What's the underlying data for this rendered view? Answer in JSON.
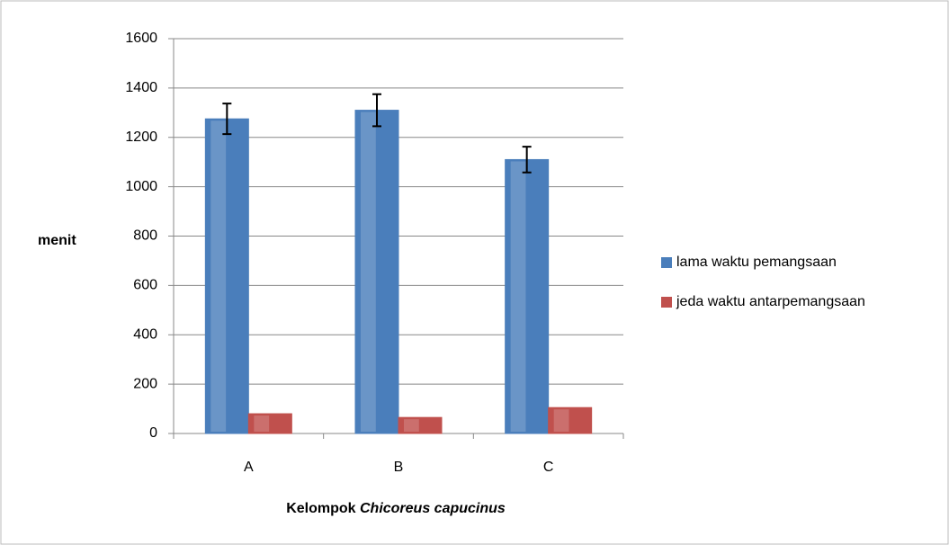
{
  "chart_data": {
    "type": "bar",
    "ylabel": "menit",
    "xlabel": {
      "text": "Kelompok",
      "species": "Chicoreus capucinus"
    },
    "categories": [
      "A",
      "B",
      "C"
    ],
    "series": [
      {
        "name": "lama waktu pemangsaan",
        "color": "#4a7ebb",
        "values": [
          1275,
          1310,
          1110
        ],
        "errors": [
          62,
          65,
          52
        ]
      },
      {
        "name": "jeda waktu antarpemangsaan",
        "color": "#c0504d",
        "values": [
          80,
          65,
          105
        ]
      }
    ],
    "ylim": [
      0,
      1600
    ],
    "yticks": [
      0,
      200,
      400,
      600,
      800,
      1000,
      1200,
      1400,
      1600
    ],
    "grid": true,
    "legend": "right"
  }
}
